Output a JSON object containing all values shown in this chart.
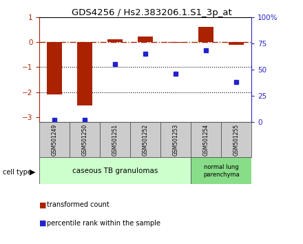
{
  "title": "GDS4256 / Hs2.383206.1.S1_3p_at",
  "samples": [
    "GSM501249",
    "GSM501250",
    "GSM501251",
    "GSM501252",
    "GSM501253",
    "GSM501254",
    "GSM501255"
  ],
  "transformed_count": [
    -2.1,
    -2.55,
    0.12,
    0.22,
    -0.02,
    0.6,
    -0.1
  ],
  "percentile_rank": [
    2,
    2,
    55,
    65,
    46,
    68,
    38
  ],
  "ylim_left": [
    -3.2,
    1.0
  ],
  "ylim_right": [
    0,
    100
  ],
  "dotted_lines": [
    -1,
    -2
  ],
  "bar_color": "#aa2200",
  "dot_color": "#2222cc",
  "right_axis_color": "#2222cc",
  "left_axis_color": "#aa2200",
  "right_ticks": [
    0,
    25,
    50,
    75,
    100
  ],
  "right_tick_labels": [
    "0",
    "25",
    "50",
    "75",
    "100%"
  ],
  "left_ticks": [
    -3,
    -2,
    -1,
    0,
    1
  ],
  "sample_box_color": "#cccccc",
  "cell_type_1_color": "#ccffcc",
  "cell_type_2_color": "#88dd88",
  "background": "#ffffff",
  "bar_width": 0.5
}
